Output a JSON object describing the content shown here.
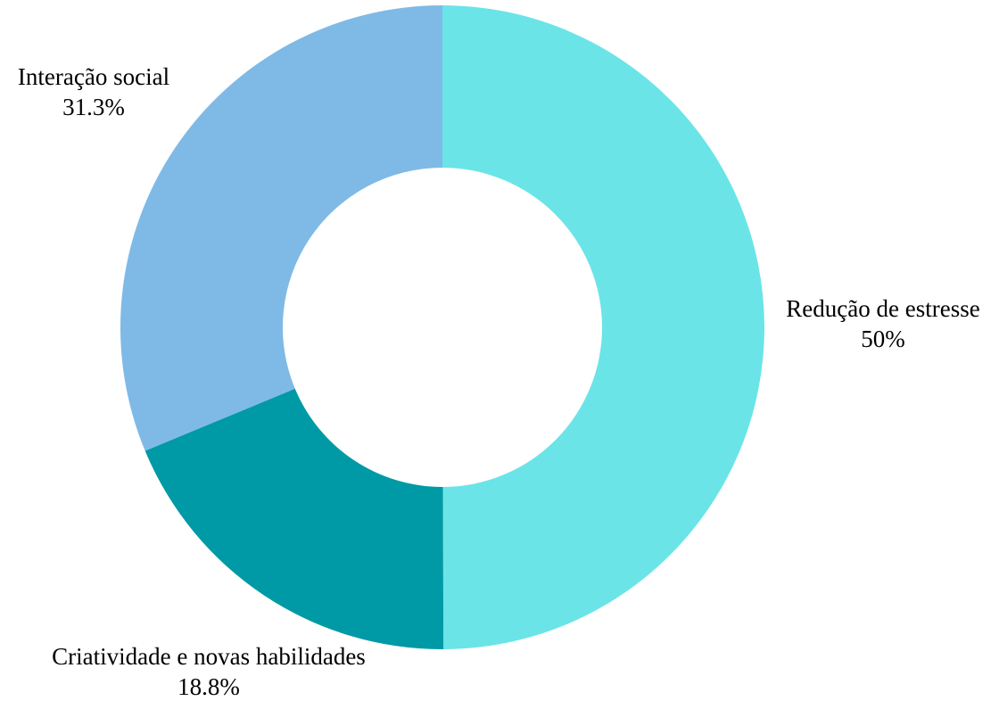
{
  "chart_data": {
    "type": "pie",
    "variant": "donut",
    "title": "",
    "legend": "none",
    "slices": [
      {
        "label": "Redução de estresse",
        "value": 50.0,
        "value_label": "50%",
        "color": "#6be4e8"
      },
      {
        "label": "Criatividade e novas habilidades",
        "value": 18.8,
        "value_label": "18.8%",
        "color": "#009aa6"
      },
      {
        "label": "Interação social",
        "value": 31.3,
        "value_label": "31.3%",
        "color": "#7fbae6"
      }
    ]
  }
}
